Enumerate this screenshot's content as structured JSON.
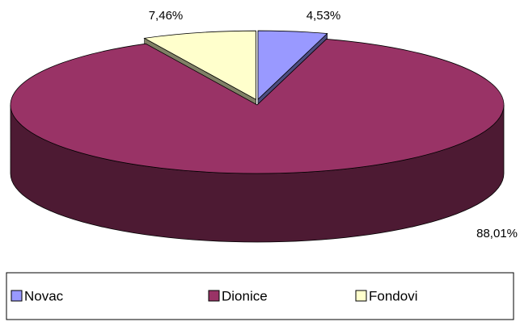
{
  "chart_data": {
    "type": "pie3d",
    "categories": [
      "Novac",
      "Dionice",
      "Fondovi"
    ],
    "values": [
      4.53,
      88.01,
      7.46
    ],
    "value_labels": [
      "4,53%",
      "88,01%",
      "7,46%"
    ],
    "colors": [
      "#9999ff",
      "#993366",
      "#ffffcc"
    ],
    "legend": "bottom"
  }
}
